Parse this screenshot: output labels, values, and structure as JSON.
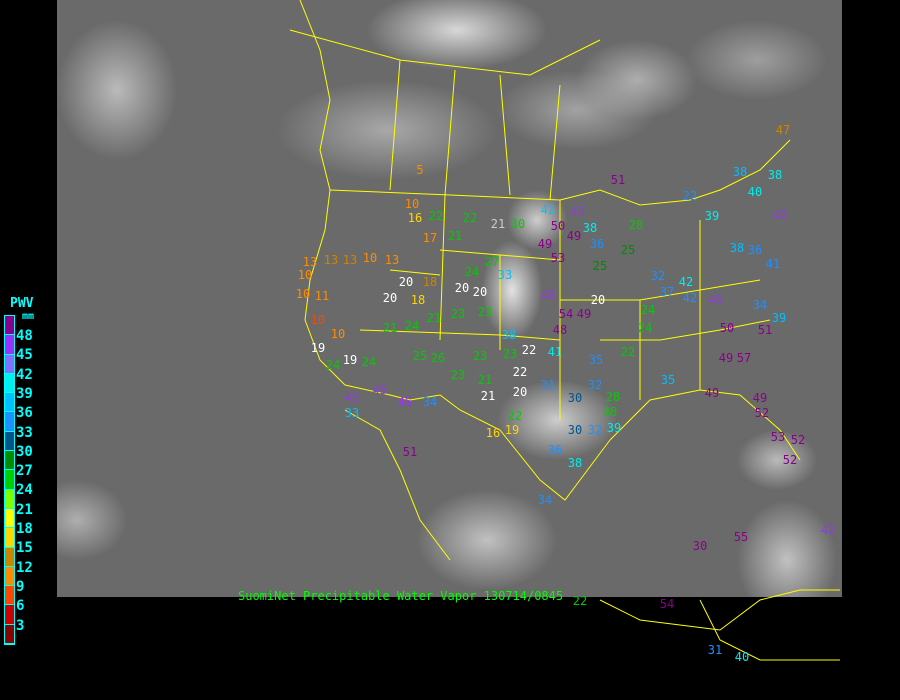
{
  "legend": {
    "title": "PWV",
    "unit": "mm",
    "labels": [
      "48",
      "45",
      "42",
      "39",
      "36",
      "33",
      "30",
      "27",
      "24",
      "21",
      "18",
      "15",
      "12",
      "9",
      "6",
      "3"
    ],
    "colors": [
      "#8b008b",
      "#9b30ff",
      "#8470ff",
      "#00eeee",
      "#00bfff",
      "#1e90ff",
      "#00558b",
      "#008b00",
      "#00cd00",
      "#7fff00",
      "#ffff00",
      "#ffd700",
      "#cd8500",
      "#ff8c00",
      "#ff4500",
      "#cd0000",
      "#8b0000"
    ]
  },
  "caption": "SuomiNet Precipitable Water Vapor  130714/0845",
  "border_color": "#ffff00",
  "stations": [
    {
      "v": "5",
      "c": "#ff8c00"
    },
    {
      "v": "51",
      "c": "#8b008b"
    },
    {
      "v": "42",
      "c": "#00bfff"
    },
    {
      "v": "47",
      "c": "#9b30ff"
    },
    {
      "v": "50",
      "c": "#8b008b"
    },
    {
      "v": "49",
      "c": "#8b008b"
    },
    {
      "v": "49",
      "c": "#8b008b"
    },
    {
      "v": "53",
      "c": "#8b008b"
    },
    {
      "v": "38",
      "c": "#00eeee"
    },
    {
      "v": "36",
      "c": "#1e90ff"
    },
    {
      "v": "30",
      "c": "#00cd00"
    },
    {
      "v": "21",
      "c": "#cccccc"
    },
    {
      "v": "22",
      "c": "#00cd00"
    },
    {
      "v": "22",
      "c": "#00cd00"
    },
    {
      "v": "16",
      "c": "#ffd700"
    },
    {
      "v": "10",
      "c": "#ff8c00"
    },
    {
      "v": "21",
      "c": "#00cd00"
    },
    {
      "v": "17",
      "c": "#ff8c00"
    },
    {
      "v": "27",
      "c": "#00cd00"
    },
    {
      "v": "24",
      "c": "#00cd00"
    },
    {
      "v": "33",
      "c": "#00bfff"
    },
    {
      "v": "20",
      "c": "#ffffff"
    },
    {
      "v": "20",
      "c": "#ffffff"
    },
    {
      "v": "48",
      "c": "#9b30ff"
    },
    {
      "v": "20",
      "c": "#ffffff"
    },
    {
      "v": "48",
      "c": "#8b008b"
    },
    {
      "v": "54",
      "c": "#8b008b"
    },
    {
      "v": "49",
      "c": "#8b008b"
    },
    {
      "v": "38",
      "c": "#00bfff"
    },
    {
      "v": "23",
      "c": "#00cd00"
    },
    {
      "v": "23",
      "c": "#00cd00"
    },
    {
      "v": "21",
      "c": "#00cd00"
    },
    {
      "v": "24",
      "c": "#00cd00"
    },
    {
      "v": "21",
      "c": "#00cd00"
    },
    {
      "v": "20",
      "c": "#ffffff"
    },
    {
      "v": "18",
      "c": "#ffd700"
    },
    {
      "v": "20",
      "c": "#ffffff"
    },
    {
      "v": "18",
      "c": "#cd8500"
    },
    {
      "v": "10",
      "c": "#ff8c00"
    },
    {
      "v": "13",
      "c": "#ff8c00"
    },
    {
      "v": "13",
      "c": "#cd8500"
    },
    {
      "v": "13",
      "c": "#ff8c00"
    },
    {
      "v": "13",
      "c": "#cd8500"
    },
    {
      "v": "10",
      "c": "#ff8c00"
    },
    {
      "v": "10",
      "c": "#ff8c00"
    },
    {
      "v": "11",
      "c": "#ff8c00"
    },
    {
      "v": "10",
      "c": "#ff4500"
    },
    {
      "v": "10",
      "c": "#ff8c00"
    },
    {
      "v": "19",
      "c": "#ffffff"
    },
    {
      "v": "19",
      "c": "#ffffff"
    },
    {
      "v": "24",
      "c": "#00cd00"
    },
    {
      "v": "24",
      "c": "#00cd00"
    },
    {
      "v": "25",
      "c": "#00cd00"
    },
    {
      "v": "26",
      "c": "#00cd00"
    },
    {
      "v": "23",
      "c": "#00cd00"
    },
    {
      "v": "23",
      "c": "#00cd00"
    },
    {
      "v": "22",
      "c": "#ffffff"
    },
    {
      "v": "41",
      "c": "#00eeee"
    },
    {
      "v": "35",
      "c": "#1e90ff"
    },
    {
      "v": "22",
      "c": "#00cd00"
    },
    {
      "v": "24",
      "c": "#00cd00"
    },
    {
      "v": "24",
      "c": "#00cd00"
    },
    {
      "v": "32",
      "c": "#1e90ff"
    },
    {
      "v": "42",
      "c": "#00eeee"
    },
    {
      "v": "37",
      "c": "#1e90ff"
    },
    {
      "v": "42",
      "c": "#1e90ff"
    },
    {
      "v": "45",
      "c": "#9b30ff"
    },
    {
      "v": "50",
      "c": "#8b008b"
    },
    {
      "v": "51",
      "c": "#8b008b"
    },
    {
      "v": "34",
      "c": "#1e90ff"
    },
    {
      "v": "39",
      "c": "#00bfff"
    },
    {
      "v": "36",
      "c": "#1e90ff"
    },
    {
      "v": "38",
      "c": "#00bfff"
    },
    {
      "v": "41",
      "c": "#1e90ff"
    },
    {
      "v": "40",
      "c": "#9b30ff"
    },
    {
      "v": "40",
      "c": "#00eeee"
    },
    {
      "v": "38",
      "c": "#00eeee"
    },
    {
      "v": "38",
      "c": "#00bfff"
    },
    {
      "v": "47",
      "c": "#cd8500"
    },
    {
      "v": "39",
      "c": "#00eeee"
    },
    {
      "v": "22",
      "c": "#1e90ff"
    },
    {
      "v": "28",
      "c": "#00cd00"
    },
    {
      "v": "25",
      "c": "#008b00"
    },
    {
      "v": "25",
      "c": "#008b00"
    },
    {
      "v": "49",
      "c": "#8b008b"
    },
    {
      "v": "57",
      "c": "#8b008b"
    },
    {
      "v": "49",
      "c": "#8b008b"
    },
    {
      "v": "49",
      "c": "#8b008b"
    },
    {
      "v": "52",
      "c": "#8b008b"
    },
    {
      "v": "53",
      "c": "#8b008b"
    },
    {
      "v": "52",
      "c": "#8b008b"
    },
    {
      "v": "52",
      "c": "#8b008b"
    },
    {
      "v": "35",
      "c": "#00bfff"
    },
    {
      "v": "32",
      "c": "#1e90ff"
    },
    {
      "v": "30",
      "c": "#00558b"
    },
    {
      "v": "31",
      "c": "#1e90ff"
    },
    {
      "v": "20",
      "c": "#ffffff"
    },
    {
      "v": "22",
      "c": "#ffffff"
    },
    {
      "v": "21",
      "c": "#ffffff"
    },
    {
      "v": "21",
      "c": "#00cd00"
    },
    {
      "v": "23",
      "c": "#00cd00"
    },
    {
      "v": "34",
      "c": "#1e90ff"
    },
    {
      "v": "45",
      "c": "#9b30ff"
    },
    {
      "v": "45",
      "c": "#9b30ff"
    },
    {
      "v": "45",
      "c": "#9b30ff"
    },
    {
      "v": "33",
      "c": "#00bfff"
    },
    {
      "v": "51",
      "c": "#8b008b"
    },
    {
      "v": "16",
      "c": "#ffd700"
    },
    {
      "v": "19",
      "c": "#ffd700"
    },
    {
      "v": "22",
      "c": "#00cd00"
    },
    {
      "v": "34",
      "c": "#1e90ff"
    },
    {
      "v": "36",
      "c": "#1e90ff"
    },
    {
      "v": "38",
      "c": "#00eeee"
    },
    {
      "v": "30",
      "c": "#00558b"
    },
    {
      "v": "32",
      "c": "#1e90ff"
    },
    {
      "v": "39",
      "c": "#00eeee"
    },
    {
      "v": "38",
      "c": "#00cd00"
    },
    {
      "v": "28",
      "c": "#00cd00"
    },
    {
      "v": "30",
      "c": "#8b008b"
    },
    {
      "v": "55",
      "c": "#8b008b"
    },
    {
      "v": "42",
      "c": "#9b30ff"
    },
    {
      "v": "54",
      "c": "#8b008b"
    },
    {
      "v": "31",
      "c": "#1e90ff"
    },
    {
      "v": "40",
      "c": "#00eeee"
    },
    {
      "v": "22",
      "c": "#00cd00"
    }
  ]
}
